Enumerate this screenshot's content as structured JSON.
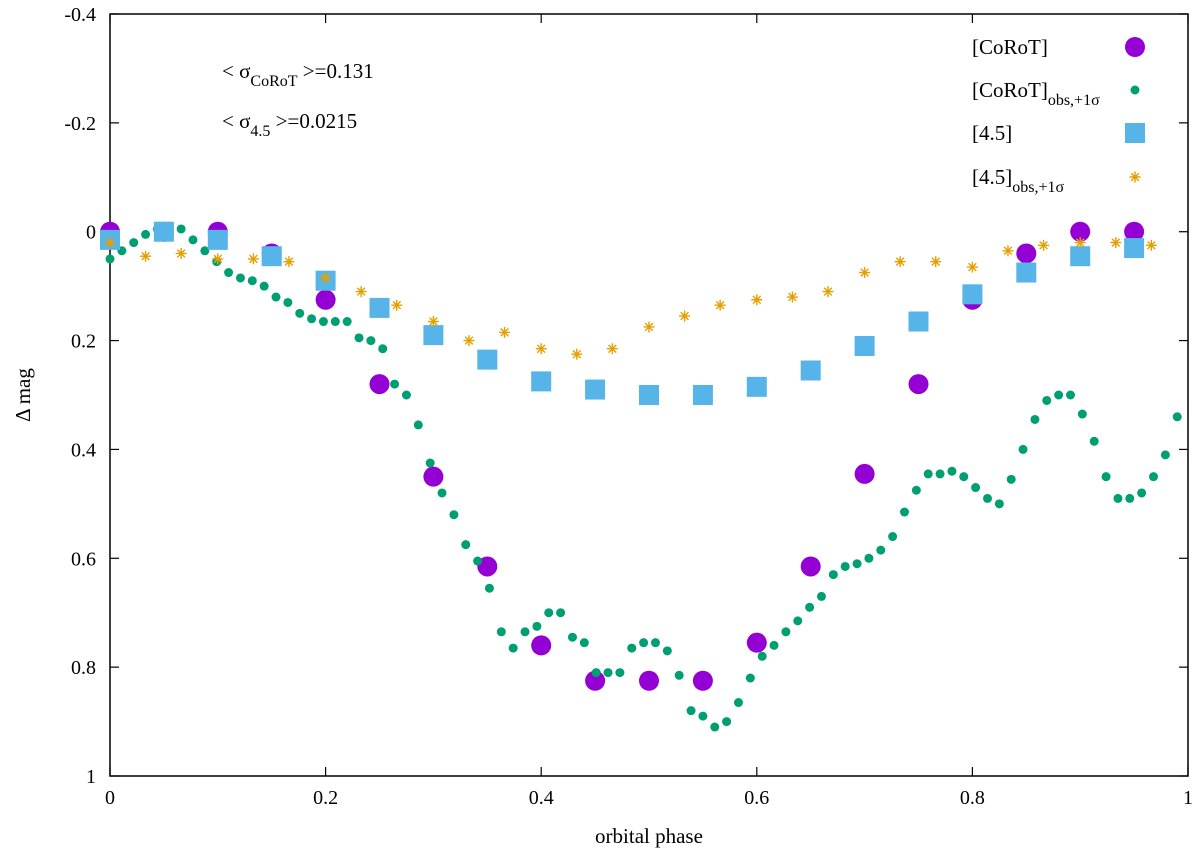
{
  "chart_data": {
    "type": "scatter",
    "xlabel": "orbital phase",
    "ylabel": "Δ mag",
    "xlim": [
      0,
      1
    ],
    "ylim": [
      1,
      -0.4
    ],
    "y_inverted": true,
    "grid": false,
    "legend_position": "top-right",
    "xticks": [
      0,
      0.2,
      0.4,
      0.6,
      0.8,
      1
    ],
    "yticks": [
      -0.4,
      -0.2,
      0,
      0.2,
      0.4,
      0.6,
      0.8,
      1
    ],
    "xtick_labels": [
      "0",
      "0.2",
      "0.4",
      "0.6",
      "0.8",
      "1"
    ],
    "ytick_labels": [
      "-0.4",
      "-0.2",
      "0",
      "0.2",
      "0.4",
      "0.6",
      "0.8",
      "1"
    ],
    "annotations": [
      {
        "prefix": "< σ",
        "sub": "CoRoT",
        "suffix": " >=0.131"
      },
      {
        "prefix": "< σ",
        "sub": "4.5",
        "suffix": " >=0.0215"
      }
    ],
    "series": [
      {
        "name": "[CoRoT]",
        "sub": "",
        "color": "#9400d3",
        "marker": "circle-large",
        "x": [
          0,
          0.05,
          0.1,
          0.15,
          0.2,
          0.25,
          0.3,
          0.35,
          0.4,
          0.45,
          0.5,
          0.55,
          0.6,
          0.65,
          0.7,
          0.75,
          0.8,
          0.85,
          0.9,
          0.95
        ],
        "y": [
          0.0,
          0.0,
          0.0,
          0.04,
          0.125,
          0.28,
          0.45,
          0.615,
          0.76,
          0.825,
          0.825,
          0.825,
          0.755,
          0.615,
          0.445,
          0.28,
          0.125,
          0.04,
          0.0,
          0.0
        ]
      },
      {
        "name": "[CoRoT]",
        "sub": "obs,+1σ",
        "color": "#009e73",
        "marker": "circle-small",
        "x": [
          0.0,
          0.011,
          0.022,
          0.033,
          0.044,
          0.055,
          0.066,
          0.077,
          0.088,
          0.099,
          0.11,
          0.121,
          0.132,
          0.143,
          0.154,
          0.165,
          0.176,
          0.187,
          0.198,
          0.209,
          0.22,
          0.231,
          0.242,
          0.253,
          0.264,
          0.275,
          0.286,
          0.297,
          0.308,
          0.319,
          0.33,
          0.341,
          0.352,
          0.363,
          0.374,
          0.385,
          0.396,
          0.407,
          0.418,
          0.429,
          0.44,
          0.451,
          0.462,
          0.473,
          0.484,
          0.495,
          0.506,
          0.517,
          0.528,
          0.539,
          0.55,
          0.561,
          0.572,
          0.583,
          0.594,
          0.605,
          0.616,
          0.627,
          0.638,
          0.649,
          0.66,
          0.671,
          0.682,
          0.693,
          0.704,
          0.715,
          0.726,
          0.737,
          0.748,
          0.759,
          0.77,
          0.781,
          0.792,
          0.803,
          0.814,
          0.825,
          0.836,
          0.847,
          0.858,
          0.869,
          0.88,
          0.891,
          0.902,
          0.913,
          0.924,
          0.935,
          0.946,
          0.957,
          0.968,
          0.979,
          0.99
        ],
        "y": [
          0.05,
          0.035,
          0.02,
          0.005,
          -0.005,
          -0.01,
          -0.005,
          0.015,
          0.035,
          0.055,
          0.075,
          0.085,
          0.09,
          0.1,
          0.12,
          0.13,
          0.15,
          0.16,
          0.165,
          0.165,
          0.165,
          0.195,
          0.2,
          0.215,
          0.28,
          0.3,
          0.355,
          0.425,
          0.48,
          0.52,
          0.575,
          0.605,
          0.655,
          0.735,
          0.765,
          0.735,
          0.725,
          0.7,
          0.7,
          0.745,
          0.755,
          0.81,
          0.81,
          0.81,
          0.765,
          0.755,
          0.755,
          0.77,
          0.815,
          0.88,
          0.89,
          0.91,
          0.9,
          0.865,
          0.82,
          0.78,
          0.76,
          0.735,
          0.715,
          0.69,
          0.67,
          0.63,
          0.615,
          0.61,
          0.6,
          0.585,
          0.56,
          0.515,
          0.475,
          0.445,
          0.445,
          0.44,
          0.45,
          0.47,
          0.49,
          0.5,
          0.455,
          0.4,
          0.345,
          0.31,
          0.3,
          0.3,
          0.335,
          0.385,
          0.45,
          0.49,
          0.49,
          0.48,
          0.45,
          0.41,
          0.34
        ]
      },
      {
        "name": "[4.5]",
        "sub": "",
        "color": "#56b4e9",
        "marker": "square",
        "x": [
          0,
          0.05,
          0.1,
          0.15,
          0.2,
          0.25,
          0.3,
          0.35,
          0.4,
          0.45,
          0.5,
          0.55,
          0.6,
          0.65,
          0.7,
          0.75,
          0.8,
          0.85,
          0.9,
          0.95
        ],
        "y": [
          0.015,
          0.0,
          0.015,
          0.045,
          0.09,
          0.14,
          0.19,
          0.235,
          0.275,
          0.29,
          0.3,
          0.3,
          0.285,
          0.255,
          0.21,
          0.165,
          0.115,
          0.075,
          0.045,
          0.03
        ]
      },
      {
        "name": "[4.5]",
        "sub": "obs,+1σ",
        "color": "#e69f00",
        "marker": "star",
        "x": [
          0.0,
          0.033,
          0.066,
          0.1,
          0.133,
          0.166,
          0.2,
          0.233,
          0.266,
          0.3,
          0.333,
          0.366,
          0.4,
          0.433,
          0.466,
          0.5,
          0.533,
          0.566,
          0.6,
          0.633,
          0.666,
          0.7,
          0.733,
          0.766,
          0.8,
          0.833,
          0.866,
          0.9,
          0.933,
          0.966
        ],
        "y": [
          0.02,
          0.045,
          0.04,
          0.05,
          0.05,
          0.055,
          0.085,
          0.11,
          0.135,
          0.165,
          0.2,
          0.185,
          0.215,
          0.225,
          0.215,
          0.175,
          0.155,
          0.135,
          0.125,
          0.12,
          0.11,
          0.075,
          0.055,
          0.055,
          0.065,
          0.035,
          0.025,
          0.02,
          0.02,
          0.025
        ]
      }
    ]
  }
}
